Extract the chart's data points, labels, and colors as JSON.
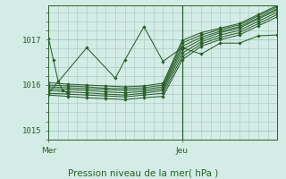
{
  "bg_color": "#d4ece6",
  "grid_color": "#a0c8c0",
  "line_color": "#2a5e2a",
  "title": "Pression niveau de la mer( hPa )",
  "xlabel_mer": "Mer",
  "xlabel_jeu": "Jeu",
  "ylim": [
    1014.85,
    1017.75
  ],
  "xlim": [
    0,
    48
  ],
  "yticks": [
    1015,
    1016,
    1017
  ],
  "mer_x": 0,
  "jeu_x": 28,
  "series": [
    [
      0,
      1015.78,
      4,
      1015.75,
      8,
      1015.72,
      12,
      1015.7,
      16,
      1015.68,
      20,
      1015.72,
      24,
      1015.75,
      28,
      1016.55,
      32,
      1016.85,
      36,
      1017.0,
      40,
      1017.1,
      44,
      1017.3,
      48,
      1017.5
    ],
    [
      0,
      1015.82,
      4,
      1015.8,
      8,
      1015.78,
      12,
      1015.76,
      16,
      1015.74,
      20,
      1015.78,
      24,
      1015.82,
      28,
      1016.62,
      32,
      1016.9,
      36,
      1017.05,
      40,
      1017.15,
      44,
      1017.35,
      48,
      1017.55
    ],
    [
      0,
      1015.88,
      4,
      1015.85,
      8,
      1015.83,
      12,
      1015.8,
      16,
      1015.78,
      20,
      1015.82,
      24,
      1015.88,
      28,
      1016.7,
      32,
      1016.95,
      36,
      1017.1,
      40,
      1017.2,
      44,
      1017.4,
      48,
      1017.6
    ],
    [
      0,
      1015.92,
      4,
      1015.9,
      8,
      1015.88,
      12,
      1015.85,
      16,
      1015.83,
      20,
      1015.86,
      24,
      1015.92,
      28,
      1016.78,
      32,
      1017.0,
      36,
      1017.15,
      40,
      1017.25,
      44,
      1017.45,
      48,
      1017.65
    ],
    [
      0,
      1015.96,
      4,
      1015.94,
      8,
      1015.92,
      12,
      1015.9,
      16,
      1015.88,
      20,
      1015.9,
      24,
      1015.96,
      28,
      1016.85,
      32,
      1017.05,
      36,
      1017.18,
      40,
      1017.28,
      44,
      1017.48,
      48,
      1017.68
    ],
    [
      0,
      1016.0,
      4,
      1015.98,
      8,
      1015.96,
      12,
      1015.93,
      16,
      1015.92,
      20,
      1015.94,
      24,
      1016.0,
      28,
      1016.92,
      32,
      1017.1,
      36,
      1017.22,
      40,
      1017.32,
      44,
      1017.52,
      48,
      1017.72
    ],
    [
      0,
      1016.05,
      4,
      1016.02,
      8,
      1016.0,
      12,
      1015.98,
      16,
      1015.96,
      20,
      1015.98,
      24,
      1016.04,
      28,
      1016.98,
      32,
      1017.15,
      36,
      1017.25,
      40,
      1017.35,
      44,
      1017.55,
      48,
      1017.75
    ],
    [
      0,
      1015.82,
      8,
      1016.82,
      14,
      1016.15,
      16,
      1016.55,
      20,
      1017.28,
      24,
      1016.52,
      28,
      1016.82,
      32,
      1016.68,
      36,
      1016.92,
      40,
      1016.92,
      44,
      1017.08,
      48,
      1017.1
    ]
  ],
  "spike": [
    0,
    1017.02,
    1,
    1016.55,
    2,
    1016.08,
    3,
    1015.88,
    4,
    1015.82
  ]
}
